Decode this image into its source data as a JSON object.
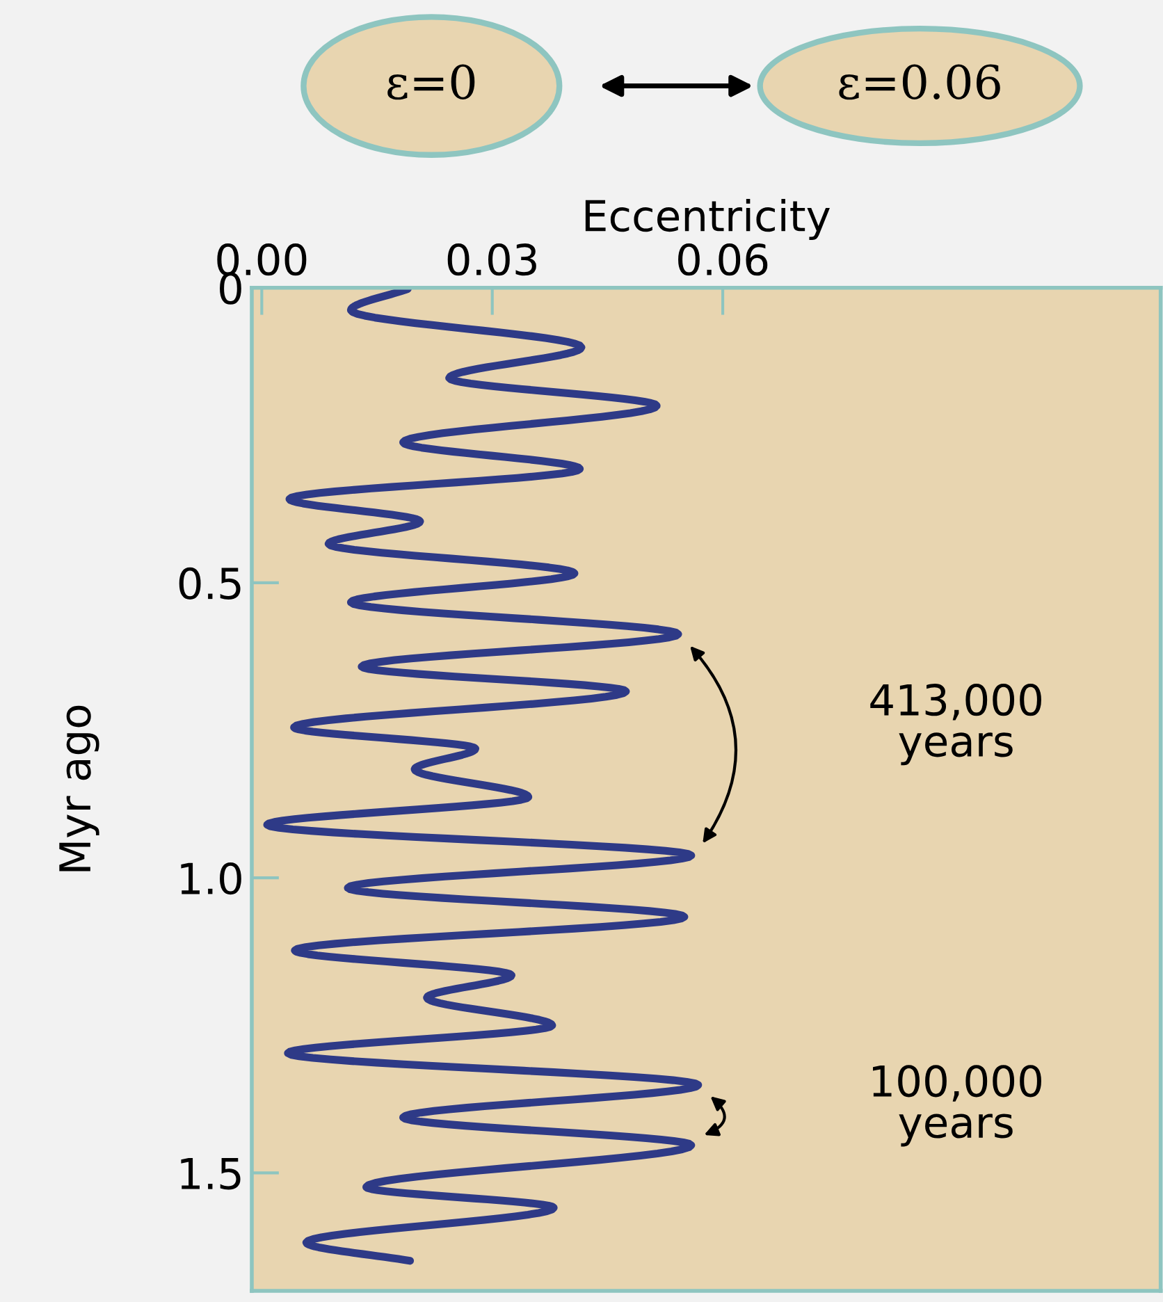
{
  "chart_data": {
    "type": "line",
    "xlabel": "Eccentricity",
    "ylabel": "Myr ago",
    "annotations": [
      "ε=0",
      "ε=0.06",
      "413,000\nyears",
      "100,000\nyears"
    ],
    "series": [
      {
        "color": "#2e3a87",
        "x": [
          0.019,
          0.0116,
          0.0416,
          0.0244,
          0.0514,
          0.0184,
          0.0414,
          0.0036,
          0.0206,
          0.0087,
          0.0407,
          0.0116,
          0.0542,
          0.013,
          0.0474,
          0.0042,
          0.0278,
          0.0199,
          0.0347,
          0.0007,
          0.0559,
          0.0112,
          0.055,
          0.0043,
          0.0325,
          0.0215,
          0.0378,
          0.0034,
          0.0568,
          0.0184,
          0.0559,
          0.0136,
          0.038,
          0.0058,
          0.0193
        ],
        "values": [
          0.002,
          0.038,
          0.101,
          0.153,
          0.2,
          0.262,
          0.307,
          0.358,
          0.396,
          0.434,
          0.484,
          0.533,
          0.587,
          0.642,
          0.684,
          0.745,
          0.781,
          0.816,
          0.863,
          0.91,
          0.962,
          1.017,
          1.066,
          1.123,
          1.165,
          1.203,
          1.25,
          1.297,
          1.351,
          1.406,
          1.453,
          1.524,
          1.559,
          1.618,
          1.649
        ]
      }
    ],
    "xlim": [
      -0.0013,
      0.117
    ],
    "xticks": [
      {
        "value": 0,
        "label": "0.00"
      },
      {
        "value": 0.03,
        "label": "0.03"
      },
      {
        "value": 0.06,
        "label": "0.06"
      }
    ],
    "ylim": [
      1.7,
      0
    ],
    "yticks": [
      0,
      0.5,
      {
        "value": 1.0,
        "label": "1.0"
      },
      1.5
    ],
    "grid": false,
    "marker": "none",
    "line_style": "solid"
  }
}
